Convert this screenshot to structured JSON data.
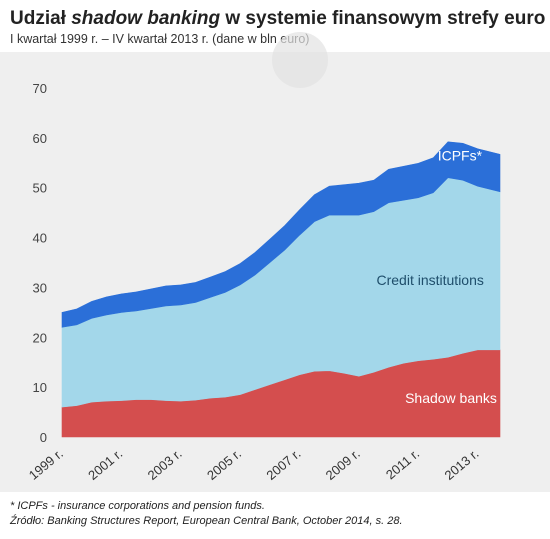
{
  "header": {
    "title_prefix": "Udział ",
    "title_italic": "shadow banking",
    "title_suffix": " w systemie finansowym strefy euro",
    "subtitle": "I kwartał 1999 r. – IV kwartał 2013 r. (dane w bln euro)"
  },
  "footer": {
    "note": "* ICPFs - insurance corporations and pension funds.",
    "source": "Źródło: Banking Structures Report,  European Central Bank, October 2014, s. 28."
  },
  "colors": {
    "shadow_banks": "#d44e4e",
    "credit_institutions": "#a3d7ea",
    "icpfs": "#2b6fd8",
    "background": "#efefef"
  },
  "chart_data": {
    "type": "area",
    "stacked": true,
    "x_labels": [
      "1999 r.",
      "2001 r.",
      "2003 r.",
      "2005 r.",
      "2007 r.",
      "2009 r.",
      "2011 r.",
      "2013 r."
    ],
    "x_label_years": [
      1999,
      2001,
      2003,
      2005,
      2007,
      2009,
      2011,
      2013
    ],
    "x": [
      1999.0,
      1999.5,
      2000.0,
      2000.5,
      2001.0,
      2001.5,
      2002.0,
      2002.5,
      2003.0,
      2003.5,
      2004.0,
      2004.5,
      2005.0,
      2005.5,
      2006.0,
      2006.5,
      2007.0,
      2007.5,
      2008.0,
      2008.5,
      2009.0,
      2009.5,
      2010.0,
      2010.5,
      2011.0,
      2011.5,
      2012.0,
      2012.5,
      2013.0,
      2013.75
    ],
    "ylim": [
      0,
      70
    ],
    "yticks": [
      0,
      10,
      20,
      30,
      40,
      50,
      60,
      70
    ],
    "grid": false,
    "series": [
      {
        "name": "Shadow banks",
        "values": [
          6.0,
          6.3,
          7.0,
          7.2,
          7.3,
          7.5,
          7.5,
          7.3,
          7.2,
          7.4,
          7.8,
          8.0,
          8.5,
          9.5,
          10.5,
          11.5,
          12.5,
          13.2,
          13.3,
          12.8,
          12.2,
          13.0,
          14.0,
          14.8,
          15.3,
          15.6,
          16.0,
          16.8,
          17.5,
          17.5
        ]
      },
      {
        "name": "Credit institutions",
        "values": [
          16.0,
          16.2,
          16.8,
          17.3,
          17.7,
          17.8,
          18.3,
          19.0,
          19.3,
          19.6,
          20.2,
          21.0,
          22.0,
          23.0,
          24.5,
          26.0,
          28.0,
          30.0,
          31.2,
          31.7,
          32.3,
          32.2,
          33.0,
          32.7,
          32.7,
          33.4,
          36.0,
          34.7,
          32.8,
          31.7
        ]
      },
      {
        "name": "ICPFs*",
        "values": [
          3.0,
          3.2,
          3.4,
          3.6,
          3.7,
          3.8,
          3.9,
          4.0,
          4.0,
          4.0,
          4.1,
          4.2,
          4.3,
          4.5,
          4.7,
          4.9,
          5.1,
          5.4,
          5.8,
          6.1,
          6.4,
          6.3,
          6.7,
          6.8,
          6.9,
          7.0,
          7.2,
          7.4,
          7.5,
          7.5
        ]
      }
    ],
    "labels": [
      {
        "text": "Shadow banks",
        "series": 0,
        "x": 2012.1,
        "y": 6.8
      },
      {
        "text": "Credit institutions",
        "series": 1,
        "x": 2011.4,
        "y": 30.5
      },
      {
        "text": "ICPFs*",
        "series": 2,
        "x": 2012.4,
        "y": 55.5
      }
    ]
  }
}
